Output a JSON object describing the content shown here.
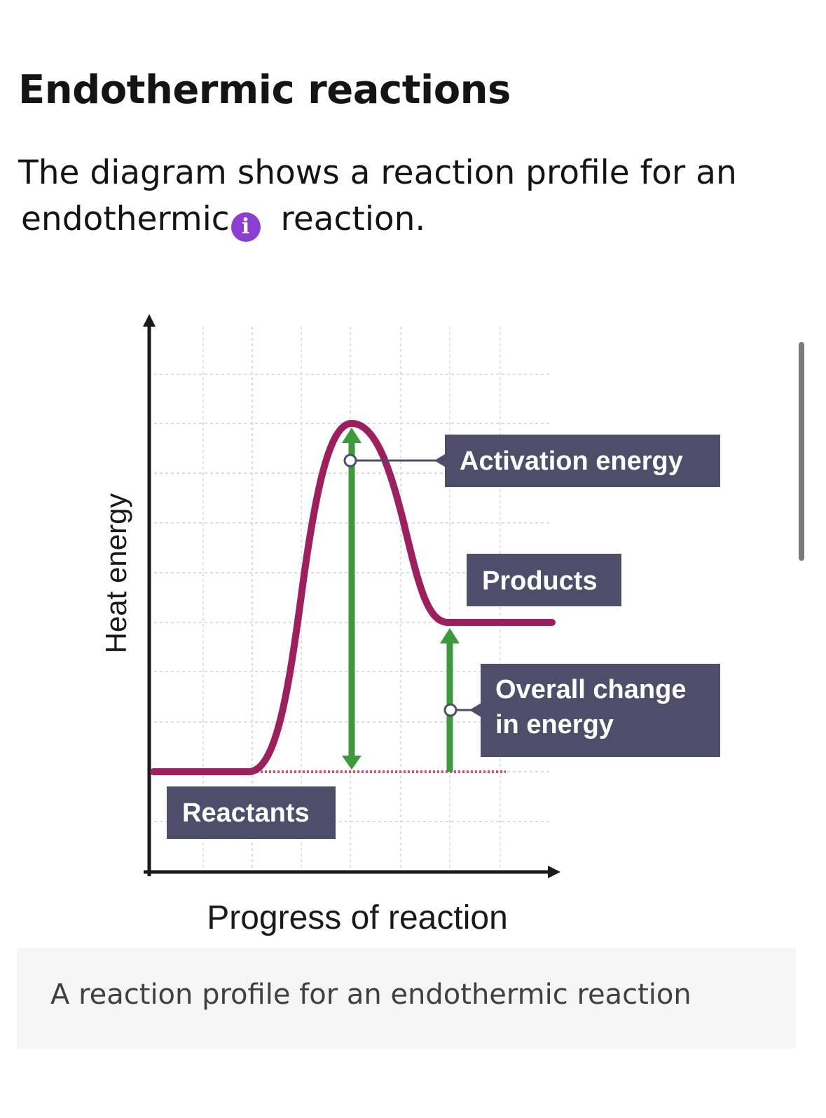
{
  "page": {
    "title": "Endothermic reactions",
    "intro_line1": "The diagram shows a reaction profile for an",
    "intro_term": "endothermic",
    "intro_end": " reaction.",
    "info_icon": "info-icon",
    "info_icon_glyph": "i",
    "caption": "A reaction profile for an endothermic reaction"
  },
  "diagram": {
    "y_axis_label": "Heat energy",
    "x_axis_label": "Progress of reaction",
    "labels": {
      "activation": "Activation energy",
      "products": "Products",
      "overall_line1": "Overall change",
      "overall_line2": "in energy",
      "reactants": "Reactants"
    },
    "colors": {
      "curve": "#9c1f5e",
      "arrows": "#3c9a3c",
      "label_bg": "#4e4d6a",
      "label_text": "#ffffff",
      "axis": "#1a1a1a",
      "grid": "#dddddd"
    }
  }
}
